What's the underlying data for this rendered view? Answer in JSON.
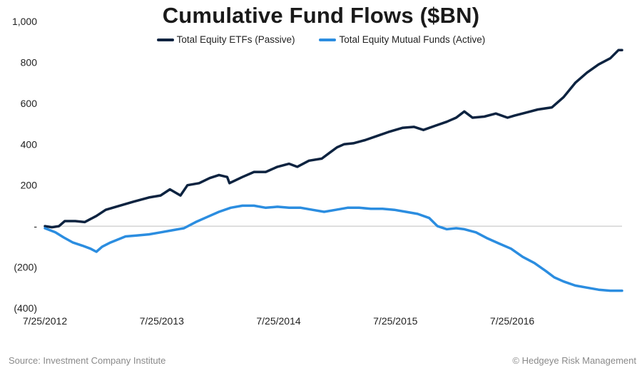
{
  "chart_data": {
    "type": "line",
    "title": "Cumulative Fund Flows ($BN)",
    "xlabel": "",
    "ylabel": "",
    "x_tick_labels": [
      "7/25/2012",
      "7/25/2013",
      "7/25/2014",
      "7/25/2015",
      "7/25/2016"
    ],
    "y_tick_labels": [
      "(400)",
      "(200)",
      "-",
      "200",
      "400",
      "600",
      "800",
      "1,000"
    ],
    "y_ticks": [
      -400,
      -200,
      0,
      200,
      400,
      600,
      800,
      1000
    ],
    "ylim": [
      -400,
      1000
    ],
    "x_range_years": [
      2012.56,
      2017.5
    ],
    "grid": false,
    "legend_position": "top-center",
    "series": [
      {
        "name": "Total Equity ETFs (Passive)",
        "color": "#0d2340",
        "points": [
          [
            2012.56,
            0
          ],
          [
            2012.62,
            -5
          ],
          [
            2012.68,
            0
          ],
          [
            2012.73,
            25
          ],
          [
            2012.82,
            25
          ],
          [
            2012.9,
            20
          ],
          [
            2013.0,
            50
          ],
          [
            2013.08,
            80
          ],
          [
            2013.2,
            100
          ],
          [
            2013.32,
            120
          ],
          [
            2013.45,
            140
          ],
          [
            2013.55,
            150
          ],
          [
            2013.63,
            180
          ],
          [
            2013.72,
            150
          ],
          [
            2013.78,
            200
          ],
          [
            2013.88,
            210
          ],
          [
            2013.97,
            235
          ],
          [
            2014.05,
            250
          ],
          [
            2014.12,
            240
          ],
          [
            2014.14,
            210
          ],
          [
            2014.25,
            240
          ],
          [
            2014.35,
            265
          ],
          [
            2014.45,
            265
          ],
          [
            2014.55,
            290
          ],
          [
            2014.65,
            305
          ],
          [
            2014.72,
            290
          ],
          [
            2014.82,
            320
          ],
          [
            2014.93,
            330
          ],
          [
            2015.0,
            360
          ],
          [
            2015.06,
            385
          ],
          [
            2015.12,
            400
          ],
          [
            2015.2,
            405
          ],
          [
            2015.3,
            420
          ],
          [
            2015.4,
            440
          ],
          [
            2015.5,
            460
          ],
          [
            2015.62,
            480
          ],
          [
            2015.72,
            485
          ],
          [
            2015.8,
            470
          ],
          [
            2015.9,
            490
          ],
          [
            2016.0,
            510
          ],
          [
            2016.08,
            530
          ],
          [
            2016.15,
            560
          ],
          [
            2016.22,
            530
          ],
          [
            2016.32,
            535
          ],
          [
            2016.42,
            550
          ],
          [
            2016.52,
            530
          ],
          [
            2016.58,
            540
          ],
          [
            2016.68,
            555
          ],
          [
            2016.78,
            570
          ],
          [
            2016.9,
            580
          ],
          [
            2017.0,
            630
          ],
          [
            2017.1,
            700
          ],
          [
            2017.2,
            750
          ],
          [
            2017.3,
            790
          ],
          [
            2017.4,
            820
          ],
          [
            2017.47,
            860
          ],
          [
            2017.5,
            860
          ]
        ]
      },
      {
        "name": "Total Equity Mutual Funds (Active)",
        "color": "#2b8de0",
        "points": [
          [
            2012.56,
            -10
          ],
          [
            2012.65,
            -30
          ],
          [
            2012.72,
            -55
          ],
          [
            2012.8,
            -80
          ],
          [
            2012.88,
            -95
          ],
          [
            2012.95,
            -110
          ],
          [
            2013.0,
            -125
          ],
          [
            2013.05,
            -100
          ],
          [
            2013.12,
            -80
          ],
          [
            2013.25,
            -50
          ],
          [
            2013.35,
            -45
          ],
          [
            2013.45,
            -40
          ],
          [
            2013.55,
            -30
          ],
          [
            2013.65,
            -20
          ],
          [
            2013.75,
            -10
          ],
          [
            2013.85,
            20
          ],
          [
            2013.95,
            45
          ],
          [
            2014.05,
            70
          ],
          [
            2014.15,
            90
          ],
          [
            2014.25,
            100
          ],
          [
            2014.35,
            100
          ],
          [
            2014.45,
            90
          ],
          [
            2014.55,
            95
          ],
          [
            2014.65,
            90
          ],
          [
            2014.75,
            90
          ],
          [
            2014.85,
            80
          ],
          [
            2014.95,
            70
          ],
          [
            2015.05,
            80
          ],
          [
            2015.15,
            90
          ],
          [
            2015.25,
            90
          ],
          [
            2015.35,
            85
          ],
          [
            2015.45,
            85
          ],
          [
            2015.55,
            80
          ],
          [
            2015.65,
            70
          ],
          [
            2015.75,
            60
          ],
          [
            2015.85,
            40
          ],
          [
            2015.92,
            0
          ],
          [
            2016.0,
            -15
          ],
          [
            2016.08,
            -10
          ],
          [
            2016.15,
            -15
          ],
          [
            2016.25,
            -30
          ],
          [
            2016.35,
            -60
          ],
          [
            2016.45,
            -85
          ],
          [
            2016.55,
            -110
          ],
          [
            2016.65,
            -150
          ],
          [
            2016.75,
            -180
          ],
          [
            2016.85,
            -220
          ],
          [
            2016.92,
            -250
          ],
          [
            2017.0,
            -270
          ],
          [
            2017.1,
            -290
          ],
          [
            2017.2,
            -300
          ],
          [
            2017.3,
            -310
          ],
          [
            2017.4,
            -315
          ],
          [
            2017.5,
            -315
          ]
        ]
      }
    ]
  },
  "footer": {
    "source": "Source: Investment Company Institute",
    "credit": "© Hedgeye Risk Management"
  }
}
